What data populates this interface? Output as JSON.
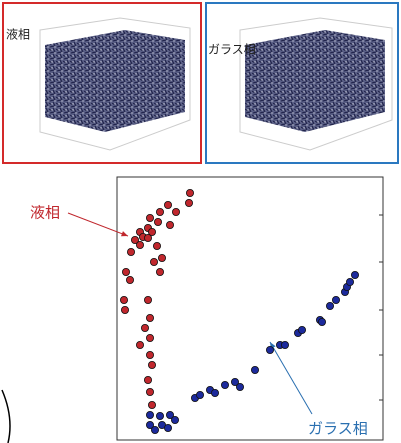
{
  "panels": [
    {
      "label": "液相"
    },
    {
      "label": "ガラス相"
    }
  ],
  "chart_data": {
    "type": "scatter",
    "xlim": [
      0,
      266
    ],
    "ylim": [
      0,
      263
    ],
    "series": [
      {
        "color": "#c0272d",
        "x": [
          73,
          72,
          51,
          43,
          59,
          33,
          41,
          31,
          53,
          23,
          26,
          35,
          18,
          23,
          31,
          14,
          40,
          45,
          37,
          43,
          9,
          13,
          7,
          31,
          8,
          33,
          28,
          33,
          23,
          33,
          35,
          31,
          33,
          35
        ],
        "values": [
          247,
          237,
          235,
          228,
          228,
          222,
          218,
          212,
          215,
          208,
          203,
          208,
          200,
          195,
          202,
          188,
          194,
          182,
          178,
          168,
          168,
          160,
          140,
          140,
          130,
          122,
          112,
          102,
          95,
          85,
          75,
          60,
          48,
          35
        ]
      },
      {
        "color": "#1c2a9c",
        "x": [
          33,
          43,
          53,
          33,
          45,
          58,
          38,
          51,
          78,
          83,
          93,
          98,
          108,
          118,
          123,
          138,
          153,
          163,
          168,
          181,
          185,
          203,
          205,
          213,
          219,
          228,
          230,
          233,
          238
        ],
        "values": [
          25,
          24,
          25,
          15,
          15,
          20,
          10,
          12,
          42,
          45,
          50,
          47,
          55,
          58,
          53,
          70,
          90,
          95,
          95,
          107,
          110,
          120,
          118,
          134,
          140,
          148,
          153,
          158,
          165
        ]
      }
    ],
    "annotations": [
      {
        "text": "液相",
        "color": "#c0272d"
      },
      {
        "text": "ガラス相",
        "color": "#2a6fb0"
      }
    ]
  }
}
